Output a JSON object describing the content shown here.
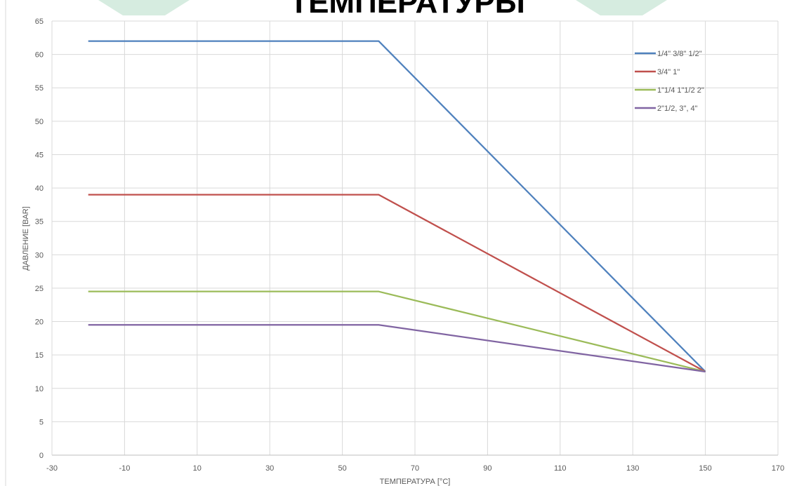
{
  "banner": {
    "title_fragment": "ТЕМПЕРАТУРЫ",
    "accent_color": "#d6ece0"
  },
  "chart_data": {
    "type": "line",
    "title": "",
    "xlabel": "ТЕМПЕРАТУРА [°C]",
    "ylabel": "ДАВЛЕНИЕ [BAR]",
    "xlim": [
      -30,
      170
    ],
    "ylim": [
      0,
      65
    ],
    "x_ticks": [
      -30,
      -10,
      10,
      30,
      50,
      70,
      90,
      110,
      130,
      150,
      170
    ],
    "y_ticks": [
      0,
      5,
      10,
      15,
      20,
      25,
      30,
      35,
      40,
      45,
      50,
      55,
      60,
      65
    ],
    "grid": true,
    "legend_position": "top-right",
    "series": [
      {
        "name": "1/4\" 3/8\" 1/2\"",
        "color": "#4f81bd",
        "points": [
          [
            -20,
            62
          ],
          [
            60,
            62
          ],
          [
            150,
            12.5
          ]
        ]
      },
      {
        "name": "3/4\" 1\"",
        "color": "#c0504d",
        "points": [
          [
            -20,
            39
          ],
          [
            60,
            39
          ],
          [
            150,
            12.5
          ]
        ]
      },
      {
        "name": "1\"1/4 1\"1/2  2\"",
        "color": "#9bbb59",
        "points": [
          [
            -20,
            24.5
          ],
          [
            60,
            24.5
          ],
          [
            150,
            12.5
          ]
        ]
      },
      {
        "name": "2\"1/2, 3\", 4\"",
        "color": "#8064a2",
        "points": [
          [
            -20,
            19.5
          ],
          [
            60,
            19.5
          ],
          [
            150,
            12.5
          ]
        ]
      }
    ]
  }
}
